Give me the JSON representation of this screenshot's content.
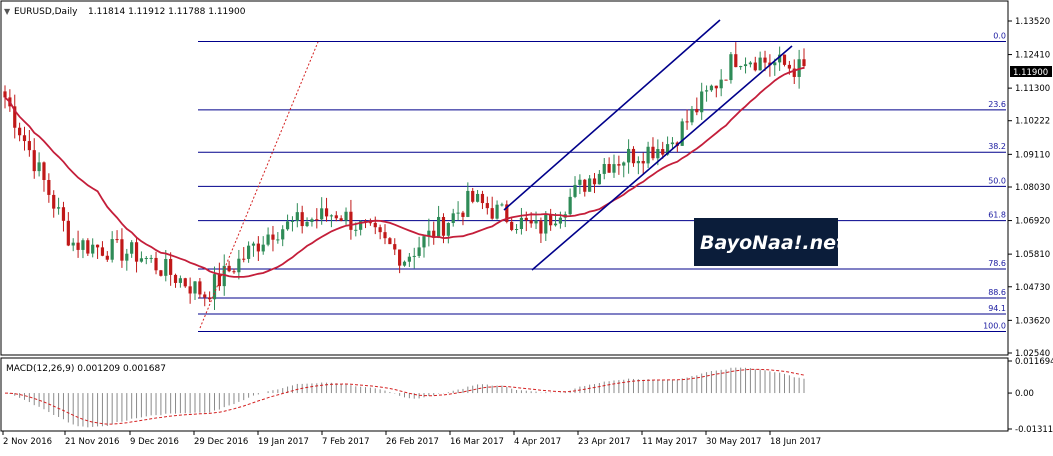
{
  "header": {
    "symbol": "EURUSD,Daily",
    "ohlc": "1.11814 1.11912 1.11788 1.11900"
  },
  "price_axis": {
    "ticks": [
      "1.13520",
      "1.12410",
      "1.11300",
      "1.10222",
      "1.09110",
      "1.08030",
      "1.06920",
      "1.05810",
      "1.04730",
      "1.03620",
      "1.02540"
    ],
    "current_price": "1.11900"
  },
  "macd": {
    "label": "MACD(12,26,9) 0.001209 0.001687",
    "ticks": [
      "0.011694",
      "0.00",
      "-0.01311"
    ]
  },
  "time_axis": {
    "labels": [
      "2 Nov 2016",
      "21 Nov 2016",
      "9 Dec 2016",
      "29 Dec 2016",
      "19 Jan 2017",
      "7 Feb 2017",
      "26 Feb 2017",
      "16 Mar 2017",
      "4 Apr 2017",
      "23 Apr 2017",
      "11 May 2017",
      "30 May 2017",
      "18 Jun 2017"
    ]
  },
  "fibonacci": {
    "levels": [
      "0.0",
      "23.6",
      "38.2",
      "50.0",
      "61.8",
      "78.6",
      "88.6",
      "94.1",
      "100.0"
    ],
    "prices": [
      1.1284,
      1.1058,
      1.0918,
      1.0805,
      1.0692,
      1.0532,
      1.0436,
      1.0383,
      1.0325
    ]
  },
  "watermark": {
    "text": "BayoNaa!.net"
  },
  "colors": {
    "bull": "#2e8b57",
    "bear": "#c01818",
    "ma": "#c41e3a",
    "fib": "#00008b",
    "channel": "#00008b",
    "trend_dotted": "#d42020",
    "macd_hist": "#8a8a8a",
    "macd_signal": "#d42020",
    "background": "#ffffff"
  },
  "chart_data": {
    "type": "candlestick",
    "instrument": "EURUSD",
    "timeframe": "Daily",
    "ylim": [
      1.0254,
      1.1352
    ],
    "anchor_closes": [
      {
        "date": "2 Nov 2016",
        "close": 1.11
      },
      {
        "date": "21 Nov 2016",
        "close": 1.062
      },
      {
        "date": "9 Dec 2016",
        "close": 1.058
      },
      {
        "date": "29 Dec 2016",
        "close": 1.045
      },
      {
        "date": "19 Jan 2017",
        "close": 1.066
      },
      {
        "date": "7 Feb 2017",
        "close": 1.072
      },
      {
        "date": "26 Feb 2017",
        "close": 1.057
      },
      {
        "date": "16 Mar 2017",
        "close": 1.076
      },
      {
        "date": "4 Apr 2017",
        "close": 1.066
      },
      {
        "date": "23 Apr 2017",
        "close": 1.088
      },
      {
        "date": "11 May 2017",
        "close": 1.095
      },
      {
        "date": "30 May 2017",
        "close": 1.124
      },
      {
        "date": "18 Jun 2017",
        "close": 1.119
      }
    ],
    "macd_ylim": [
      -0.01311,
      0.011694
    ]
  }
}
